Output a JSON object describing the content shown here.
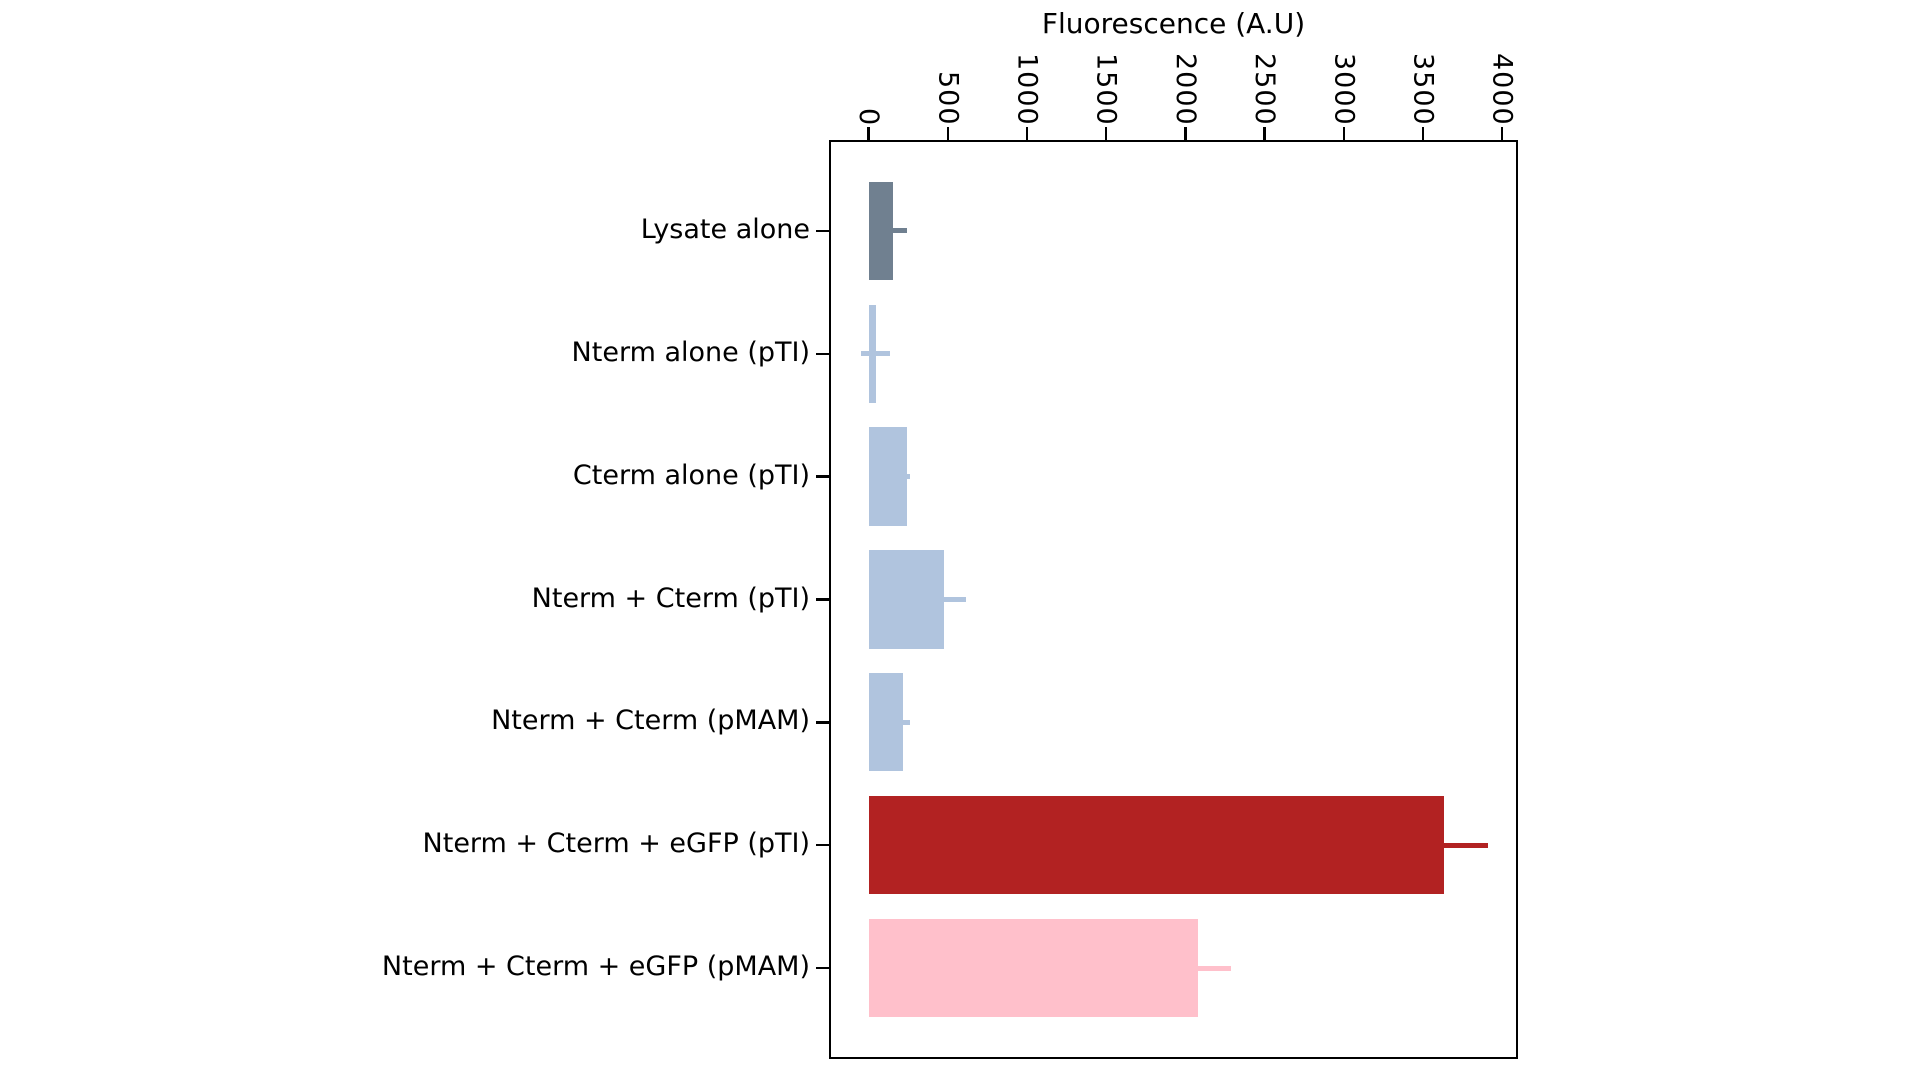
{
  "title": "Fluorescence (A.U)",
  "chart_data": {
    "type": "bar",
    "orientation": "horizontal",
    "title": "Fluorescence (A.U)",
    "value_axis_label": "Fluorescence (A.U)",
    "value_axis_position": "top",
    "tick_label_rotation_deg": 90,
    "grid": false,
    "legend": null,
    "categories": [
      "Lysate alone",
      "Nterm alone (pTI)",
      "Cterm alone (pTI)",
      "Nterm + Cterm (pTI)",
      "Nterm + Cterm (pMAM)",
      "Nterm + Cterm + eGFP (pTI)",
      "Nterm + Cterm + eGFP (pMAM)"
    ],
    "values": [
      155,
      45,
      240,
      475,
      215,
      3630,
      2080
    ],
    "errors": [
      90,
      90,
      20,
      140,
      45,
      280,
      210
    ],
    "bar_colors": [
      "#708090",
      "#b0c4de",
      "#b0c4de",
      "#b0c4de",
      "#b0c4de",
      "#b22222",
      "#ffc0cb"
    ],
    "x_ticks": [
      "0",
      "500",
      "1000",
      "1500",
      "2000",
      "2500",
      "3000",
      "3500",
      "4000"
    ],
    "x_tick_values": [
      0,
      500,
      1000,
      1500,
      2000,
      2500,
      3000,
      3500,
      4000
    ],
    "xlim": [
      -250,
      4100
    ]
  }
}
